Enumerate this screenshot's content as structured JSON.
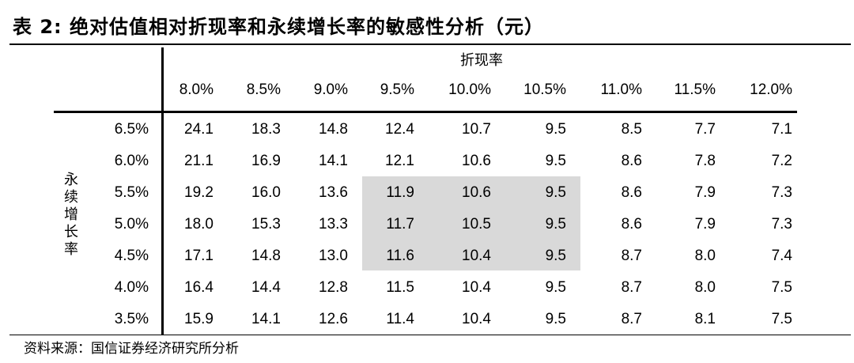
{
  "title": "表 2:  绝对估值相对折现率和永续增长率的敏感性分析（元）",
  "column_group_label": "折现率",
  "row_group_label": [
    "永",
    "续",
    "增",
    "长",
    "率"
  ],
  "columns": [
    "8.0%",
    "8.5%",
    "9.0%",
    "9.5%",
    "10.0%",
    "10.5%",
    "11.0%",
    "11.5%",
    "12.0%"
  ],
  "rows": [
    {
      "label": "6.5%",
      "values": [
        "24.1",
        "18.3",
        "14.8",
        "12.4",
        "10.7",
        "9.5",
        "8.5",
        "7.7",
        "7.1"
      ]
    },
    {
      "label": "6.0%",
      "values": [
        "21.1",
        "16.9",
        "14.1",
        "12.1",
        "10.6",
        "9.5",
        "8.6",
        "7.8",
        "7.2"
      ]
    },
    {
      "label": "5.5%",
      "values": [
        "19.2",
        "16.0",
        "13.6",
        "11.9",
        "10.6",
        "9.5",
        "8.6",
        "7.9",
        "7.3"
      ]
    },
    {
      "label": "5.0%",
      "values": [
        "18.0",
        "15.3",
        "13.3",
        "11.7",
        "10.5",
        "9.5",
        "8.6",
        "7.9",
        "7.3"
      ]
    },
    {
      "label": "4.5%",
      "values": [
        "17.1",
        "14.8",
        "13.0",
        "11.6",
        "10.4",
        "9.5",
        "8.7",
        "8.0",
        "7.4"
      ]
    },
    {
      "label": "4.0%",
      "values": [
        "16.4",
        "14.4",
        "12.8",
        "11.5",
        "10.4",
        "9.5",
        "8.7",
        "8.0",
        "7.5"
      ]
    },
    {
      "label": "3.5%",
      "values": [
        "15.9",
        "14.1",
        "12.6",
        "11.4",
        "10.4",
        "9.5",
        "8.7",
        "8.1",
        "7.5"
      ]
    }
  ],
  "highlight_color": "#d9d9d9",
  "source": "资料来源：国信证券经济研究所分析"
}
